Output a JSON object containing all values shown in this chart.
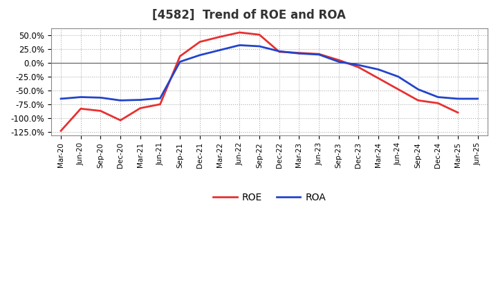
{
  "title": "[4582]  Trend of ROE and ROA",
  "labels": [
    "Mar-20",
    "Jun-20",
    "Sep-20",
    "Dec-20",
    "Mar-21",
    "Jun-21",
    "Sep-21",
    "Dec-21",
    "Mar-22",
    "Jun-22",
    "Sep-22",
    "Dec-22",
    "Mar-23",
    "Jun-23",
    "Sep-23",
    "Dec-23",
    "Mar-24",
    "Jun-24",
    "Sep-24",
    "Dec-24",
    "Mar-25",
    "Jun-25"
  ],
  "ROE": [
    -123,
    -83,
    -87,
    -104,
    -82,
    -75,
    12,
    38,
    47,
    55,
    51,
    20,
    18,
    16,
    5,
    -8,
    -28,
    -48,
    -68,
    -73,
    -90,
    null
  ],
  "ROA": [
    -65,
    -62,
    -63,
    -68,
    -67,
    -64,
    2,
    14,
    23,
    32,
    30,
    21,
    17,
    15,
    2,
    -4,
    -12,
    -25,
    -48,
    -62,
    -65,
    -65
  ],
  "roe_color": "#e83030",
  "roa_color": "#2244cc",
  "ylim": [
    -132,
    62
  ],
  "yticks": [
    -125,
    -100,
    -75,
    -50,
    -25,
    0,
    25,
    50
  ],
  "ytick_labels": [
    "-125.0%",
    "-100.0%",
    "-75.0%",
    "-50.0%",
    "-25.0%",
    "0.0%",
    "25.0%",
    "50.0%"
  ],
  "background_color": "#ffffff",
  "plot_bg_color": "#ffffff",
  "grid_color": "#999999",
  "legend_roe": "ROE",
  "legend_roa": "ROA",
  "line_width": 2.0
}
